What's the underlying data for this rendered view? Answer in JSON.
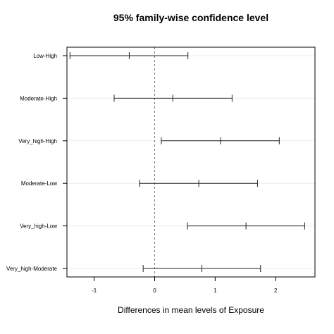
{
  "chart_data": {
    "type": "interval",
    "title": "95% family-wise confidence level",
    "xlabel": "Differences in mean levels of Exposure",
    "ylabel": "",
    "xlim": [
      -1.45,
      2.65
    ],
    "x_ticks": [
      {
        "value": -1,
        "label": "-1"
      },
      {
        "value": 0,
        "label": "0"
      },
      {
        "value": 1,
        "label": "1"
      },
      {
        "value": 2,
        "label": "2"
      }
    ],
    "reference_line": 0,
    "grid": true,
    "comparisons": [
      {
        "label": "Low-High",
        "lower": -1.4,
        "estimate": -0.42,
        "upper": 0.55
      },
      {
        "label": "Moderate-High",
        "lower": -0.67,
        "estimate": 0.3,
        "upper": 1.28
      },
      {
        "label": "Very_high-High",
        "lower": 0.11,
        "estimate": 1.09,
        "upper": 2.06
      },
      {
        "label": "Moderate-Low",
        "lower": -0.25,
        "estimate": 0.73,
        "upper": 1.7
      },
      {
        "label": "Very_high-Low",
        "lower": 0.54,
        "estimate": 1.51,
        "upper": 2.48
      },
      {
        "label": "Very_high-Moderate",
        "lower": -0.19,
        "estimate": 0.78,
        "upper": 1.75
      }
    ]
  }
}
